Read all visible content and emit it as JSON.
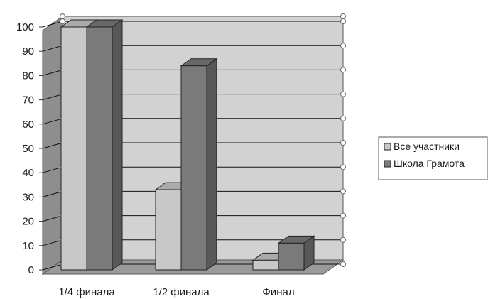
{
  "chart_data": {
    "type": "bar",
    "categories": [
      "1/4 финала",
      "1/2 финала",
      "Финал"
    ],
    "series": [
      {
        "name": "Все участники",
        "values": [
          100,
          33,
          4
        ],
        "color": "#c8c8c8"
      },
      {
        "name": "Школа Грамота",
        "values": [
          100,
          84,
          11
        ],
        "color": "#7a7a7a"
      }
    ],
    "yticks": [
      0,
      10,
      20,
      30,
      40,
      50,
      60,
      70,
      80,
      90,
      100
    ],
    "ylim": [
      0,
      100
    ],
    "grid": true,
    "legend_position": "right",
    "style": "3d",
    "colors": {
      "wall": "#d2d2d2",
      "floor": "#9a9a9a",
      "grid": "#111111"
    }
  }
}
